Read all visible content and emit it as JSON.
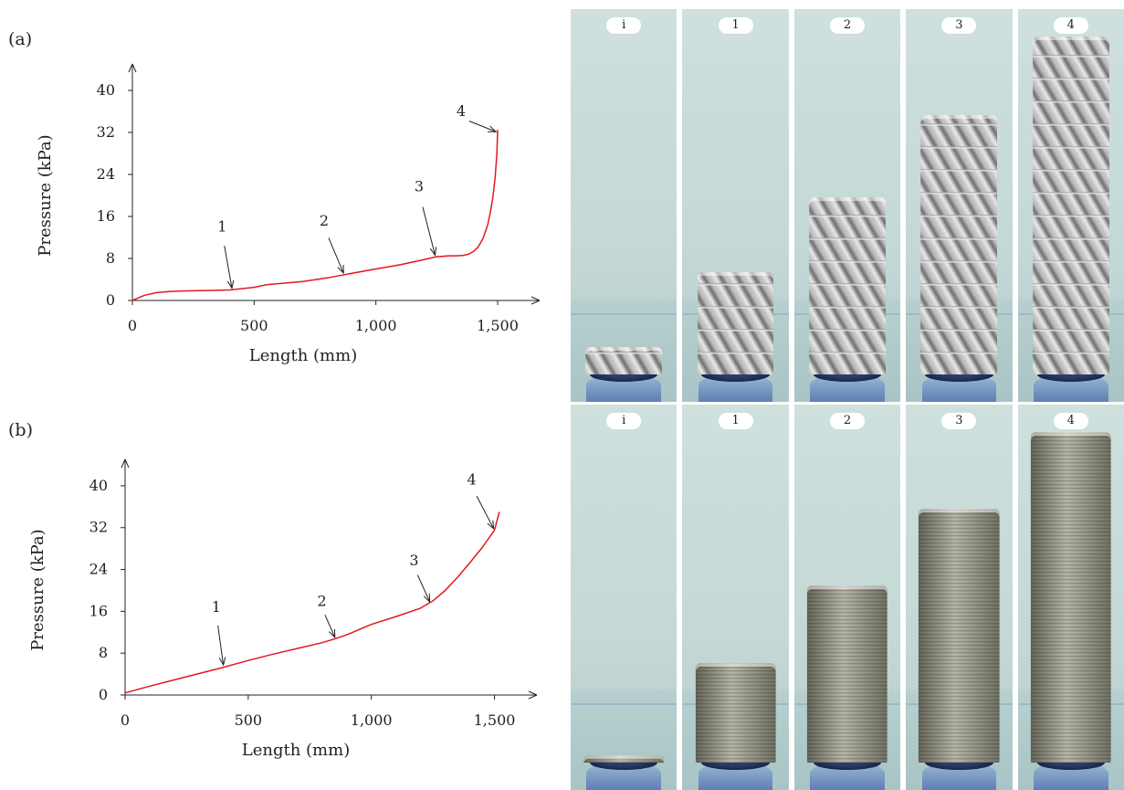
{
  "panel_labels": {
    "a": "(a)",
    "b": "(b)"
  },
  "chart_data": [
    {
      "type": "line",
      "panel": "(a)",
      "xlabel": "Length (mm)",
      "ylabel": "Pressure (kPa)",
      "xlim": [
        0,
        1650
      ],
      "ylim": [
        0,
        44
      ],
      "xticks": [
        0,
        500,
        1000,
        1500
      ],
      "xtick_labels": [
        "0",
        "500",
        "1,000",
        "1,500"
      ],
      "yticks": [
        0,
        8,
        16,
        24,
        32,
        40
      ],
      "ytick_labels": [
        "0",
        "8",
        "16",
        "24",
        "32",
        "40"
      ],
      "grid": false,
      "line_color": "#e0191f",
      "series": [
        {
          "x": [
            0,
            20,
            50,
            100,
            150,
            200,
            300,
            400,
            420,
            500,
            550,
            700,
            800,
            880,
            1000,
            1100,
            1200,
            1245,
            1300,
            1330,
            1360,
            1380,
            1400,
            1420,
            1440,
            1460,
            1470,
            1480,
            1490,
            1497,
            1500
          ],
          "y": [
            0.0,
            0.4,
            1.0,
            1.5,
            1.7,
            1.8,
            1.9,
            2.0,
            2.1,
            2.5,
            3.0,
            3.6,
            4.3,
            5.0,
            6.0,
            6.8,
            7.8,
            8.3,
            8.5,
            8.5,
            8.6,
            8.8,
            9.3,
            10.2,
            11.8,
            14.5,
            16.8,
            19.5,
            23.5,
            28.0,
            32.5
          ]
        }
      ],
      "annotations": [
        {
          "label": "1",
          "x": 410,
          "y": 2.0
        },
        {
          "label": "2",
          "x": 870,
          "y": 4.9
        },
        {
          "label": "3",
          "x": 1245,
          "y": 8.3
        },
        {
          "label": "4",
          "x": 1500,
          "y": 32.0
        }
      ]
    },
    {
      "type": "line",
      "panel": "(b)",
      "xlabel": "Length (mm)",
      "ylabel": "Pressure (kPa)",
      "xlim": [
        0,
        1650
      ],
      "ylim": [
        0,
        44
      ],
      "xticks": [
        0,
        500,
        1000,
        1500
      ],
      "xtick_labels": [
        "0",
        "500",
        "1,000",
        "1,500"
      ],
      "yticks": [
        0,
        8,
        16,
        24,
        32,
        40
      ],
      "ytick_labels": [
        "0",
        "8",
        "16",
        "24",
        "32",
        "40"
      ],
      "grid": false,
      "line_color": "#e0191f",
      "series": [
        {
          "x": [
            0,
            100,
            200,
            300,
            400,
            500,
            600,
            700,
            800,
            850,
            900,
            1000,
            1100,
            1200,
            1250,
            1300,
            1350,
            1400,
            1450,
            1500,
            1520
          ],
          "y": [
            0.4,
            1.7,
            2.9,
            4.1,
            5.3,
            6.6,
            7.8,
            8.9,
            10.0,
            10.7,
            11.5,
            13.5,
            15.0,
            16.6,
            18.0,
            20.0,
            22.5,
            25.3,
            28.2,
            31.5,
            35.0
          ]
        }
      ],
      "annotations": [
        {
          "label": "1",
          "x": 400,
          "y": 5.4
        },
        {
          "label": "2",
          "x": 855,
          "y": 10.7
        },
        {
          "label": "3",
          "x": 1240,
          "y": 17.5
        },
        {
          "label": "4",
          "x": 1500,
          "y": 31.5
        }
      ]
    }
  ],
  "photos": {
    "row_a": {
      "style": "twisted-fold",
      "tiles": [
        {
          "tag": "i",
          "height_fraction": 0.14
        },
        {
          "tag": "1",
          "height_fraction": 0.33
        },
        {
          "tag": "2",
          "height_fraction": 0.52
        },
        {
          "tag": "3",
          "height_fraction": 0.73
        },
        {
          "tag": "4",
          "height_fraction": 0.93
        }
      ]
    },
    "row_b": {
      "style": "conical-bellows",
      "tiles": [
        {
          "tag": "i",
          "height_fraction": 0.09
        },
        {
          "tag": "1",
          "height_fraction": 0.33
        },
        {
          "tag": "2",
          "height_fraction": 0.53
        },
        {
          "tag": "3",
          "height_fraction": 0.73
        },
        {
          "tag": "4",
          "height_fraction": 0.93
        }
      ]
    }
  }
}
